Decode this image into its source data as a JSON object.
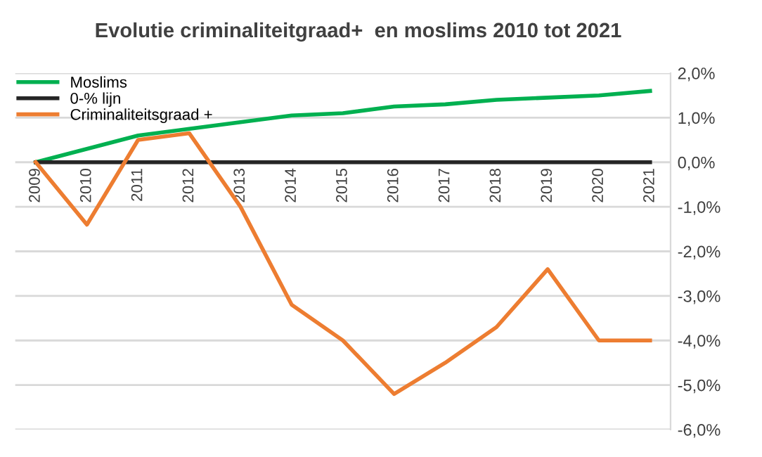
{
  "chart_data": {
    "type": "line",
    "title": "Evolutie criminaliteitgraad+  en moslims 2010 tot 2021",
    "categories": [
      "2009",
      "2010",
      "2011",
      "2012",
      "2013",
      "2014",
      "2015",
      "2016",
      "2017",
      "2018",
      "2019",
      "2020",
      "2021"
    ],
    "series": [
      {
        "name": "Moslims",
        "color": "#00b050",
        "values": [
          0,
          0.3,
          0.6,
          0.75,
          0.9,
          1.05,
          1.1,
          1.25,
          1.3,
          1.4,
          1.45,
          1.5,
          1.6
        ]
      },
      {
        "name": "0-% lijn",
        "color": "#262626",
        "values": [
          0,
          0,
          0,
          0,
          0,
          0,
          0,
          0,
          0,
          0,
          0,
          0,
          0
        ]
      },
      {
        "name": "Criminaliteitsgraad +",
        "color": "#ed7d31",
        "values": [
          0,
          -1.4,
          0.5,
          0.65,
          -1.0,
          -3.2,
          -4.0,
          -5.2,
          -4.5,
          -3.7,
          -2.4,
          -4.0,
          -4.0
        ]
      }
    ],
    "ylim": [
      -6,
      2
    ],
    "yticks": [
      {
        "value": -6,
        "label": "-6,0%"
      },
      {
        "value": -5,
        "label": "-5,0%"
      },
      {
        "value": -4,
        "label": "-4,0%"
      },
      {
        "value": -3,
        "label": "-3,0%"
      },
      {
        "value": -2,
        "label": "-2,0%"
      },
      {
        "value": -1,
        "label": "-1,0%"
      },
      {
        "value": 0,
        "label": "0,0%"
      },
      {
        "value": 1,
        "label": "1,0%"
      },
      {
        "value": 2,
        "label": "2,0%"
      }
    ],
    "grid": "y",
    "legend": "top left"
  }
}
